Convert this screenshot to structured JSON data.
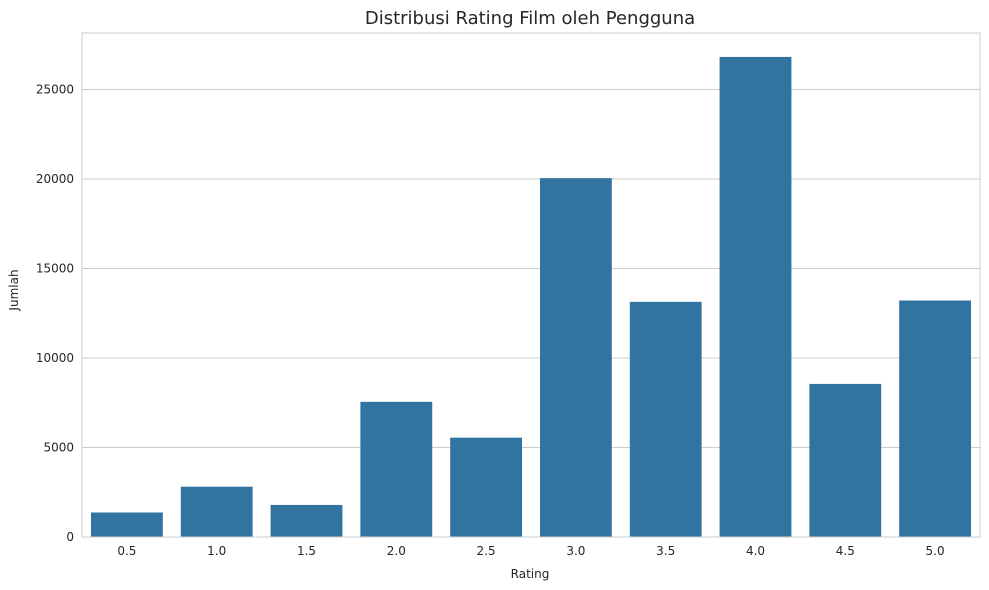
{
  "chart_data": {
    "type": "bar",
    "title": "Distribusi Rating Film oleh Pengguna",
    "xlabel": "Rating",
    "ylabel": "Jumlah",
    "categories": [
      "0.5",
      "1.0",
      "1.5",
      "2.0",
      "2.5",
      "3.0",
      "3.5",
      "4.0",
      "4.5",
      "5.0"
    ],
    "values": [
      1370,
      2811,
      1791,
      7551,
      5550,
      20047,
      13136,
      26818,
      8551,
      13211
    ],
    "ylim": [
      0,
      28155
    ],
    "yticks": [
      0,
      5000,
      10000,
      15000,
      20000,
      25000
    ],
    "grid": true,
    "bar_color": "#3274a1",
    "legend": "none"
  }
}
